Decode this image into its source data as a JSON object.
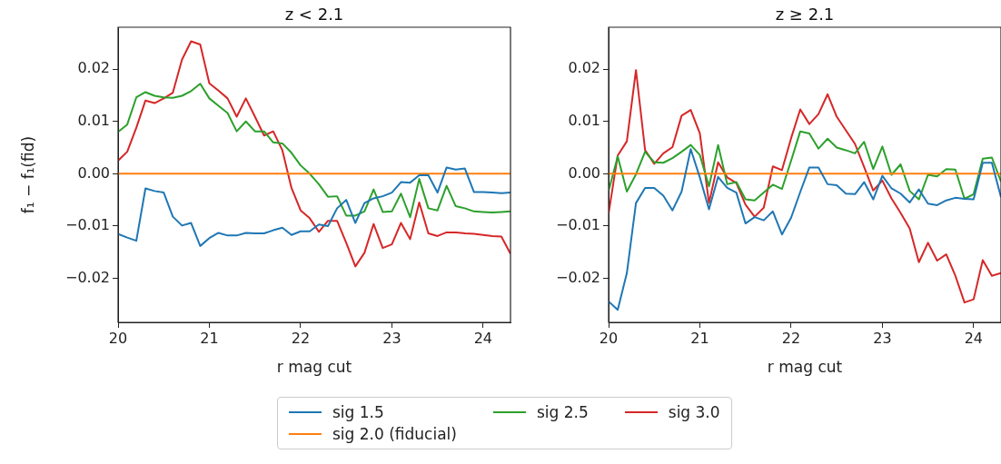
{
  "chart_data": [
    {
      "type": "line",
      "title": "z < 2.1",
      "xlabel": "r mag cut",
      "ylabel": "f₁ − f₁(fid)",
      "legend": "bottom",
      "x": [
        20.0,
        20.1,
        20.2,
        20.3,
        20.4,
        20.5,
        20.6,
        20.7,
        20.8,
        20.9,
        21.0,
        21.1,
        21.2,
        21.3,
        21.4,
        21.5,
        21.6,
        21.7,
        21.8,
        21.9,
        22.0,
        22.1,
        22.2,
        22.3,
        22.4,
        22.5,
        22.6,
        22.7,
        22.8,
        22.9,
        23.0,
        23.1,
        23.2,
        23.3,
        23.4,
        23.5,
        23.6,
        23.7,
        23.8,
        23.9,
        24.0,
        24.1,
        24.2,
        24.3
      ],
      "xlim": [
        20,
        24.3
      ],
      "xticks": [
        20,
        21,
        22,
        23,
        24
      ],
      "ylim": [
        -0.0284,
        0.028
      ],
      "yticks": [
        {
          "value": -0.02,
          "label": "−0.02"
        },
        {
          "value": -0.01,
          "label": "−0.01"
        },
        {
          "value": 0,
          "label": "0.00"
        },
        {
          "value": 0.01,
          "label": "0.01"
        },
        {
          "value": 0.02,
          "label": "0.02"
        }
      ],
      "series": [
        {
          "name": "sig 1.5",
          "color": "#1f77b4",
          "values": [
            -0.0115,
            -0.0122,
            -0.0128,
            -0.0028,
            -0.0033,
            -0.0036,
            -0.0082,
            -0.0099,
            -0.0094,
            -0.0138,
            -0.0123,
            -0.0113,
            -0.0118,
            -0.0118,
            -0.0113,
            -0.0114,
            -0.0114,
            -0.0108,
            -0.0103,
            -0.0117,
            -0.011,
            -0.011,
            -0.0097,
            -0.01,
            -0.0066,
            -0.005,
            -0.0094,
            -0.0056,
            -0.0047,
            -0.0043,
            -0.0036,
            -0.0016,
            -0.0017,
            -0.0003,
            -0.0003,
            -0.0036,
            0.0012,
            0.0008,
            0.001,
            -0.0035,
            -0.0035,
            -0.0036,
            -0.0037,
            -0.0036
          ]
        },
        {
          "name": "sig 2.0 (fiducial)",
          "color": "#ff7f0e",
          "values": [
            0,
            0,
            0,
            0,
            0,
            0,
            0,
            0,
            0,
            0,
            0,
            0,
            0,
            0,
            0,
            0,
            0,
            0,
            0,
            0,
            0,
            0,
            0,
            0,
            0,
            0,
            0,
            0,
            0,
            0,
            0,
            0,
            0,
            0,
            0,
            0,
            0,
            0,
            0,
            0,
            0,
            0,
            0,
            0
          ]
        },
        {
          "name": "sig 2.5",
          "color": "#2ca02c",
          "values": [
            0.008,
            0.0094,
            0.0146,
            0.0156,
            0.0149,
            0.0146,
            0.0145,
            0.0149,
            0.0158,
            0.0172,
            0.0144,
            0.013,
            0.0116,
            0.0081,
            0.01,
            0.0081,
            0.0081,
            0.006,
            0.0058,
            0.004,
            0.0016,
            0,
            -0.002,
            -0.0044,
            -0.0043,
            -0.008,
            -0.008,
            -0.0072,
            -0.003,
            -0.0073,
            -0.0072,
            -0.0038,
            -0.0083,
            -0.001,
            -0.0066,
            -0.007,
            -0.0023,
            -0.0062,
            -0.0066,
            -0.0072,
            -0.0073,
            -0.0074,
            -0.0073,
            -0.0072
          ]
        },
        {
          "name": "sig 3.0",
          "color": "#d62728",
          "values": [
            0.0025,
            0.0042,
            0.0088,
            0.014,
            0.0135,
            0.0144,
            0.0155,
            0.0218,
            0.0253,
            0.0247,
            0.0173,
            0.0159,
            0.0144,
            0.0109,
            0.0144,
            0.0109,
            0.0073,
            0.0081,
            0.0045,
            -0.0027,
            -0.007,
            -0.0085,
            -0.0111,
            -0.009,
            -0.009,
            -0.0132,
            -0.0177,
            -0.0151,
            -0.0096,
            -0.0142,
            -0.0135,
            -0.0094,
            -0.0125,
            -0.0055,
            -0.0114,
            -0.0119,
            -0.0112,
            -0.0112,
            -0.0114,
            -0.0115,
            -0.0117,
            -0.0119,
            -0.012,
            -0.0153
          ]
        }
      ]
    },
    {
      "type": "line",
      "title": "z ≥ 2.1",
      "xlabel": "r mag cut",
      "x": [
        20.0,
        20.1,
        20.2,
        20.3,
        20.4,
        20.5,
        20.6,
        20.7,
        20.8,
        20.9,
        21.0,
        21.1,
        21.2,
        21.3,
        21.4,
        21.5,
        21.6,
        21.7,
        21.8,
        21.9,
        22.0,
        22.1,
        22.2,
        22.3,
        22.4,
        22.5,
        22.6,
        22.7,
        22.8,
        22.9,
        23.0,
        23.1,
        23.2,
        23.3,
        23.4,
        23.5,
        23.6,
        23.7,
        23.8,
        23.9,
        24.0,
        24.1,
        24.2,
        24.3
      ],
      "xlim": [
        20,
        24.3
      ],
      "xticks": [
        20,
        21,
        22,
        23,
        24
      ],
      "ylim": [
        -0.0284,
        0.028
      ],
      "yticks": [
        {
          "value": -0.02,
          "label": "−0.02"
        },
        {
          "value": -0.01,
          "label": "−0.01"
        },
        {
          "value": 0,
          "label": "0.00"
        },
        {
          "value": 0.01,
          "label": "0.01"
        },
        {
          "value": 0.02,
          "label": "0.02"
        }
      ],
      "series": [
        {
          "color": "#1f77b4",
          "values": [
            -0.0244,
            -0.026,
            -0.019,
            -0.0056,
            -0.0027,
            -0.0027,
            -0.0042,
            -0.007,
            -0.0034,
            0.0047,
            -0.0007,
            -0.0068,
            -0.0006,
            -0.0027,
            -0.0036,
            -0.0095,
            -0.0083,
            -0.0089,
            -0.0072,
            -0.0116,
            -0.0084,
            -0.0035,
            0.0012,
            0.0012,
            -0.002,
            -0.0022,
            -0.0038,
            -0.0039,
            -0.0016,
            -0.0049,
            -0.0004,
            -0.0028,
            -0.0038,
            -0.0055,
            -0.003,
            -0.0057,
            -0.006,
            -0.0051,
            -0.0046,
            -0.0048,
            -0.0049,
            0.0021,
            0.0021,
            -0.0045
          ]
        },
        {
          "color": "#ff7f0e",
          "values": [
            0,
            0,
            0,
            0,
            0,
            0,
            0,
            0,
            0,
            0,
            0,
            0,
            0,
            0,
            0,
            0,
            0,
            0,
            0,
            0,
            0,
            0,
            0,
            0,
            0,
            0,
            0,
            0,
            0,
            0,
            0,
            0,
            0,
            0,
            0,
            0,
            0,
            0,
            0,
            0,
            0,
            0,
            0,
            0
          ]
        },
        {
          "color": "#2ca02c",
          "values": [
            -0.0033,
            0.0033,
            -0.0034,
            -0.0001,
            0.0042,
            0.0022,
            0.0021,
            0.003,
            0.0042,
            0.0055,
            0.0036,
            -0.0024,
            0.0055,
            -0.002,
            -0.0016,
            -0.0049,
            -0.0051,
            -0.0036,
            -0.0021,
            -0.0029,
            0.0025,
            0.0081,
            0.0077,
            0.0048,
            0.0067,
            0.005,
            0.0045,
            0.0039,
            0.0061,
            0.0009,
            0.0052,
            -0.0002,
            0.0018,
            -0.0033,
            -0.0049,
            -0.0002,
            -0.0005,
            0.0009,
            0.0008,
            -0.0048,
            -0.0039,
            0.0029,
            0.0031,
            -0.0015
          ]
        },
        {
          "color": "#d62728",
          "values": [
            -0.0076,
            0.0035,
            0.0062,
            0.0198,
            0.0045,
            0.0019,
            0.0039,
            0.0051,
            0.0111,
            0.0122,
            0.0077,
            -0.0056,
            0.0022,
            -0.0007,
            -0.0018,
            -0.0059,
            -0.0082,
            -0.0065,
            0.0014,
            0.0007,
            0.0068,
            0.0123,
            0.0095,
            0.0114,
            0.0152,
            0.0109,
            0.0083,
            0.0057,
            0.0013,
            -0.0032,
            -0.0013,
            -0.0047,
            -0.0075,
            -0.0105,
            -0.0169,
            -0.0132,
            -0.0166,
            -0.0154,
            -0.0195,
            -0.0246,
            -0.024,
            -0.0165,
            -0.0195,
            -0.019
          ]
        }
      ]
    }
  ]
}
